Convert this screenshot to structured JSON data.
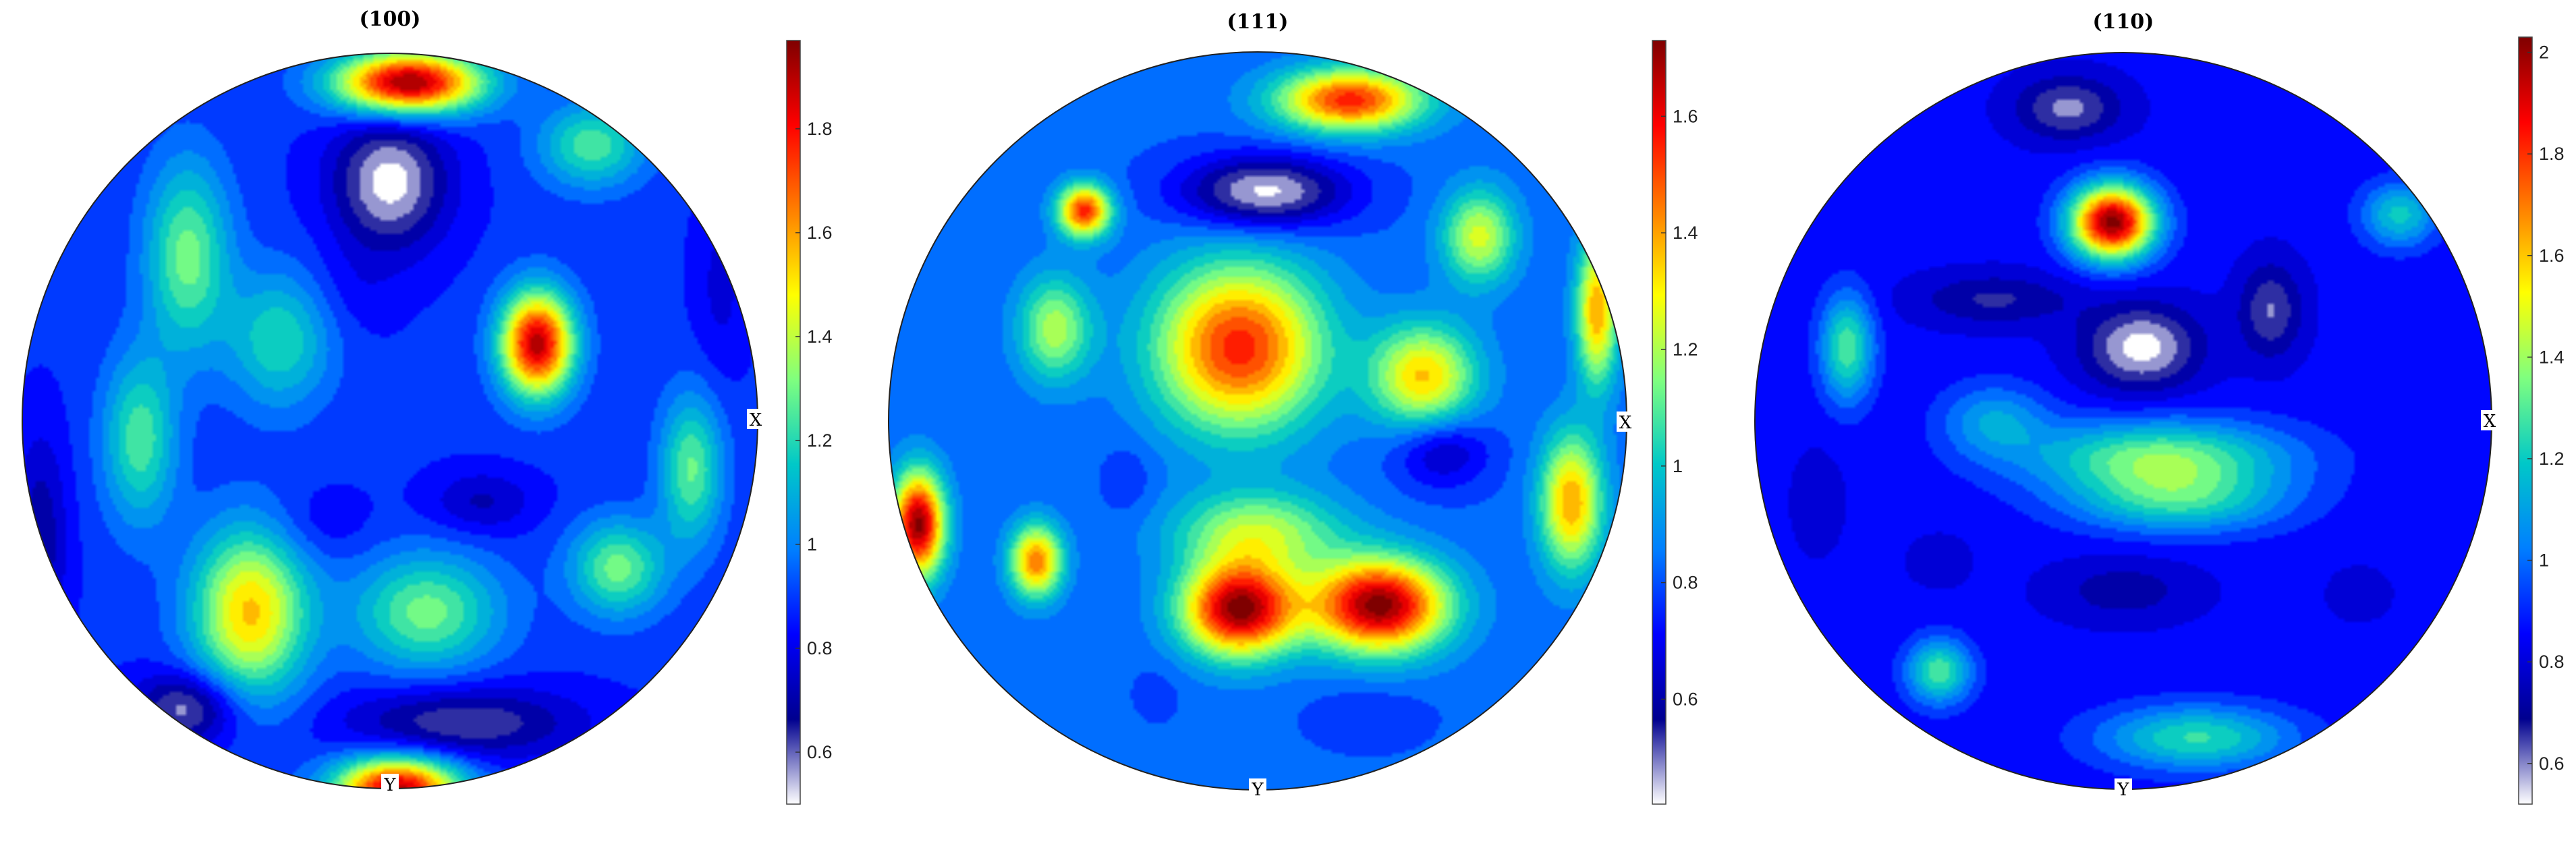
{
  "colormap": [
    "#ffffff",
    "#00008f",
    "#0000ff",
    "#007fff",
    "#00c8c8",
    "#7fff7f",
    "#ffff00",
    "#ff7f00",
    "#ff0000",
    "#7f0000"
  ],
  "chart_data": [
    {
      "type": "heatmap",
      "title": "(100)",
      "x_label": "X",
      "y_label": "Y",
      "colorbar": {
        "min": 0.5,
        "max": 1.97,
        "ticks": [
          0.6,
          0.8,
          1,
          1.2,
          1.4,
          1.6,
          1.8
        ],
        "tick_labels": [
          "0.6",
          "0.8",
          "1",
          "1.2",
          "1.4",
          "1.6",
          "1.8"
        ]
      },
      "background_level": 0.88,
      "features": [
        {
          "x": 0.05,
          "y": -0.92,
          "value": 1.97,
          "sx": 0.14,
          "sy": 0.06
        },
        {
          "x": 0.4,
          "y": -0.21,
          "value": 1.9,
          "sx": 0.07,
          "sy": 0.1
        },
        {
          "x": 0.02,
          "y": 1.0,
          "value": 1.9,
          "sx": 0.12,
          "sy": 0.06
        },
        {
          "x": 0.0,
          "y": -0.65,
          "value": 0.5,
          "sx": 0.11,
          "sy": 0.13
        },
        {
          "x": -0.55,
          "y": 0.78,
          "value": 0.55,
          "sx": 0.1,
          "sy": 0.07
        },
        {
          "x": 0.2,
          "y": 0.82,
          "value": 0.6,
          "sx": 0.22,
          "sy": 0.07
        },
        {
          "x": 0.25,
          "y": 0.22,
          "value": 0.72,
          "sx": 0.1,
          "sy": 0.06
        },
        {
          "x": -0.95,
          "y": 0.32,
          "value": 0.68,
          "sx": 0.05,
          "sy": 0.2
        },
        {
          "x": 0.9,
          "y": -0.37,
          "value": 0.78,
          "sx": 0.05,
          "sy": 0.18
        },
        {
          "x": -0.38,
          "y": 0.52,
          "value": 1.55,
          "sx": 0.11,
          "sy": 0.16
        },
        {
          "x": 0.1,
          "y": 0.52,
          "value": 1.3,
          "sx": 0.14,
          "sy": 0.11
        },
        {
          "x": 0.62,
          "y": 0.4,
          "value": 1.3,
          "sx": 0.09,
          "sy": 0.09
        },
        {
          "x": -0.68,
          "y": 0.05,
          "value": 1.25,
          "sx": 0.07,
          "sy": 0.16
        },
        {
          "x": -0.55,
          "y": -0.45,
          "value": 1.3,
          "sx": 0.08,
          "sy": 0.18
        },
        {
          "x": -0.3,
          "y": -0.22,
          "value": 1.2,
          "sx": 0.1,
          "sy": 0.13
        },
        {
          "x": 0.82,
          "y": 0.13,
          "value": 1.28,
          "sx": 0.06,
          "sy": 0.14
        },
        {
          "x": 0.55,
          "y": -0.75,
          "value": 1.25,
          "sx": 0.1,
          "sy": 0.08
        },
        {
          "x": -0.1,
          "y": -0.35,
          "value": 0.82,
          "sx": 0.09,
          "sy": 0.09
        },
        {
          "x": -0.2,
          "y": 0.28,
          "value": 0.8,
          "sx": 0.1,
          "sy": 0.07
        }
      ]
    },
    {
      "type": "heatmap",
      "title": "(111)",
      "x_label": "X",
      "y_label": "Y",
      "colorbar": {
        "min": 0.42,
        "max": 1.73,
        "ticks": [
          0.6,
          0.8,
          1,
          1.2,
          1.4,
          1.6
        ],
        "tick_labels": [
          "0.6",
          "0.8",
          "1",
          "1.2",
          "1.4",
          "1.6"
        ]
      },
      "background_level": 0.82,
      "features": [
        {
          "x": 0.33,
          "y": 0.5,
          "value": 1.73,
          "sx": 0.13,
          "sy": 0.09
        },
        {
          "x": -0.05,
          "y": 0.51,
          "value": 1.72,
          "sx": 0.11,
          "sy": 0.09
        },
        {
          "x": -0.92,
          "y": 0.28,
          "value": 1.72,
          "sx": 0.05,
          "sy": 0.1
        },
        {
          "x": 0.25,
          "y": -0.87,
          "value": 1.55,
          "sx": 0.14,
          "sy": 0.06
        },
        {
          "x": -0.47,
          "y": -0.57,
          "value": 1.55,
          "sx": 0.05,
          "sy": 0.05
        },
        {
          "x": -0.6,
          "y": 0.38,
          "value": 1.45,
          "sx": 0.05,
          "sy": 0.07
        },
        {
          "x": 0.02,
          "y": -0.62,
          "value": 0.42,
          "sx": 0.16,
          "sy": 0.07
        },
        {
          "x": 0.5,
          "y": 0.08,
          "value": 0.6,
          "sx": 0.09,
          "sy": 0.07
        },
        {
          "x": -0.35,
          "y": 0.16,
          "value": 0.75,
          "sx": 0.05,
          "sy": 0.07
        },
        {
          "x": 0.3,
          "y": 0.8,
          "value": 0.75,
          "sx": 0.11,
          "sy": 0.06
        },
        {
          "x": -0.27,
          "y": 0.73,
          "value": 0.78,
          "sx": 0.05,
          "sy": 0.06
        },
        {
          "x": -0.05,
          "y": -0.2,
          "value": 1.55,
          "sx": 0.16,
          "sy": 0.16
        },
        {
          "x": 0.45,
          "y": -0.12,
          "value": 1.35,
          "sx": 0.1,
          "sy": 0.1
        },
        {
          "x": 0.85,
          "y": 0.22,
          "value": 1.4,
          "sx": 0.06,
          "sy": 0.13
        },
        {
          "x": 0.92,
          "y": -0.3,
          "value": 1.4,
          "sx": 0.04,
          "sy": 0.14
        },
        {
          "x": 0.6,
          "y": -0.5,
          "value": 1.25,
          "sx": 0.07,
          "sy": 0.09
        },
        {
          "x": -0.55,
          "y": -0.25,
          "value": 1.2,
          "sx": 0.07,
          "sy": 0.1
        },
        {
          "x": 0.0,
          "y": 0.3,
          "value": 1.2,
          "sx": 0.16,
          "sy": 0.08
        }
      ]
    },
    {
      "type": "heatmap",
      "title": "(110)",
      "x_label": "X",
      "y_label": "Y",
      "colorbar": {
        "min": 0.52,
        "max": 2.03,
        "ticks": [
          0.6,
          0.8,
          1,
          1.2,
          1.4,
          1.6,
          1.8,
          2
        ],
        "tick_labels": [
          "0.6",
          "0.8",
          "1",
          "1.2",
          "1.4",
          "1.6",
          "1.8",
          "2"
        ]
      },
      "background_level": 0.85,
      "features": [
        {
          "x": -0.03,
          "y": -0.54,
          "value": 2.03,
          "sx": 0.08,
          "sy": 0.07
        },
        {
          "x": 0.05,
          "y": -0.2,
          "value": 0.52,
          "sx": 0.11,
          "sy": 0.08
        },
        {
          "x": -0.15,
          "y": -0.85,
          "value": 0.6,
          "sx": 0.1,
          "sy": 0.06
        },
        {
          "x": 0.4,
          "y": -0.3,
          "value": 0.62,
          "sx": 0.06,
          "sy": 0.09
        },
        {
          "x": -0.35,
          "y": -0.33,
          "value": 0.68,
          "sx": 0.15,
          "sy": 0.05
        },
        {
          "x": 0.0,
          "y": 0.46,
          "value": 0.72,
          "sx": 0.14,
          "sy": 0.06
        },
        {
          "x": -0.5,
          "y": 0.38,
          "value": 0.78,
          "sx": 0.06,
          "sy": 0.05
        },
        {
          "x": 0.64,
          "y": 0.47,
          "value": 0.78,
          "sx": 0.06,
          "sy": 0.05
        },
        {
          "x": -0.83,
          "y": 0.22,
          "value": 0.78,
          "sx": 0.05,
          "sy": 0.1
        },
        {
          "x": 0.1,
          "y": 0.1,
          "value": 1.35,
          "sx": 0.24,
          "sy": 0.07
        },
        {
          "x": 0.15,
          "y": 0.22,
          "value": 1.2,
          "sx": 0.2,
          "sy": 0.06
        },
        {
          "x": -0.75,
          "y": -0.2,
          "value": 1.3,
          "sx": 0.05,
          "sy": 0.1
        },
        {
          "x": 0.2,
          "y": 0.86,
          "value": 1.25,
          "sx": 0.18,
          "sy": 0.06
        },
        {
          "x": -0.5,
          "y": 0.68,
          "value": 1.3,
          "sx": 0.06,
          "sy": 0.06
        },
        {
          "x": 0.75,
          "y": -0.56,
          "value": 1.2,
          "sx": 0.07,
          "sy": 0.06
        },
        {
          "x": -0.35,
          "y": 0.0,
          "value": 1.1,
          "sx": 0.1,
          "sy": 0.07
        }
      ]
    }
  ]
}
